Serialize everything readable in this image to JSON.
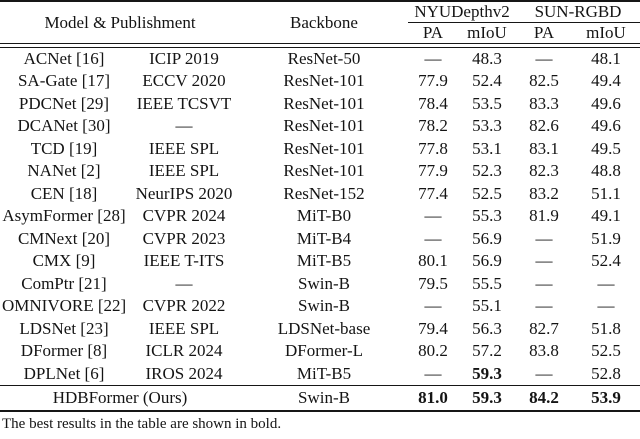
{
  "table": {
    "header": {
      "model_publishment": "Model & Publishment",
      "backbone": "Backbone",
      "groups": [
        {
          "label": "NYUDepthv2"
        },
        {
          "label": "SUN-RGBD"
        }
      ],
      "subcols": [
        "PA",
        "mIoU",
        "PA",
        "mIoU"
      ]
    },
    "rows": [
      {
        "model": "ACNet [16]",
        "venue": "ICIP 2019",
        "backbone": "ResNet-50",
        "nyu_pa": "—",
        "nyu_miou": "48.3",
        "sun_pa": "—",
        "sun_miou": "48.1",
        "bold": []
      },
      {
        "model": "SA-Gate [17]",
        "venue": "ECCV 2020",
        "backbone": "ResNet-101",
        "nyu_pa": "77.9",
        "nyu_miou": "52.4",
        "sun_pa": "82.5",
        "sun_miou": "49.4",
        "bold": []
      },
      {
        "model": "PDCNet [29]",
        "venue": "IEEE TCSVT",
        "backbone": "ResNet-101",
        "nyu_pa": "78.4",
        "nyu_miou": "53.5",
        "sun_pa": "83.3",
        "sun_miou": "49.6",
        "bold": []
      },
      {
        "model": "DCANet [30]",
        "venue": "—",
        "backbone": "ResNet-101",
        "nyu_pa": "78.2",
        "nyu_miou": "53.3",
        "sun_pa": "82.6",
        "sun_miou": "49.6",
        "bold": []
      },
      {
        "model": "TCD [19]",
        "venue": "IEEE SPL",
        "backbone": "ResNet-101",
        "nyu_pa": "77.8",
        "nyu_miou": "53.1",
        "sun_pa": "83.1",
        "sun_miou": "49.5",
        "bold": []
      },
      {
        "model": "NANet [2]",
        "venue": "IEEE SPL",
        "backbone": "ResNet-101",
        "nyu_pa": "77.9",
        "nyu_miou": "52.3",
        "sun_pa": "82.3",
        "sun_miou": "48.8",
        "bold": []
      },
      {
        "model": "CEN [18]",
        "venue": "NeurIPS 2020",
        "backbone": "ResNet-152",
        "nyu_pa": "77.4",
        "nyu_miou": "52.5",
        "sun_pa": "83.2",
        "sun_miou": "51.1",
        "bold": []
      },
      {
        "model": "AsymFormer [28]",
        "venue": "CVPR 2024",
        "backbone": "MiT-B0",
        "nyu_pa": "—",
        "nyu_miou": "55.3",
        "sun_pa": "81.9",
        "sun_miou": "49.1",
        "bold": []
      },
      {
        "model": "CMNext [20]",
        "venue": "CVPR 2023",
        "backbone": "MiT-B4",
        "nyu_pa": "—",
        "nyu_miou": "56.9",
        "sun_pa": "—",
        "sun_miou": "51.9",
        "bold": []
      },
      {
        "model": "CMX [9]",
        "venue": "IEEE T-ITS",
        "backbone": "MiT-B5",
        "nyu_pa": "80.1",
        "nyu_miou": "56.9",
        "sun_pa": "—",
        "sun_miou": "52.4",
        "bold": []
      },
      {
        "model": "ComPtr [21]",
        "venue": "—",
        "backbone": "Swin-B",
        "nyu_pa": "79.5",
        "nyu_miou": "55.5",
        "sun_pa": "—",
        "sun_miou": "—",
        "bold": []
      },
      {
        "model": "OMNIVORE [22]",
        "venue": "CVPR 2022",
        "backbone": "Swin-B",
        "nyu_pa": "—",
        "nyu_miou": "55.1",
        "sun_pa": "—",
        "sun_miou": "—",
        "bold": []
      },
      {
        "model": "LDSNet [23]",
        "venue": "IEEE SPL",
        "backbone": "LDSNet-base",
        "nyu_pa": "79.4",
        "nyu_miou": "56.3",
        "sun_pa": "82.7",
        "sun_miou": "51.8",
        "bold": []
      },
      {
        "model": "DFormer [8]",
        "venue": "ICLR 2024",
        "backbone": "DFormer-L",
        "nyu_pa": "80.2",
        "nyu_miou": "57.2",
        "sun_pa": "83.8",
        "sun_miou": "52.5",
        "bold": []
      },
      {
        "model": "DPLNet [6]",
        "venue": "IROS 2024",
        "backbone": "MiT-B5",
        "nyu_pa": "—",
        "nyu_miou": "59.3",
        "sun_pa": "—",
        "sun_miou": "52.8",
        "bold": [
          "nyu_miou"
        ]
      }
    ],
    "summary_row": {
      "model": "HDBFormer (Ours)",
      "backbone": "Swin-B",
      "nyu_pa": "81.0",
      "nyu_miou": "59.3",
      "sun_pa": "84.2",
      "sun_miou": "53.9",
      "bold": [
        "nyu_pa",
        "nyu_miou",
        "sun_pa",
        "sun_miou"
      ]
    }
  },
  "footnote": "The best results in the table are shown in bold."
}
